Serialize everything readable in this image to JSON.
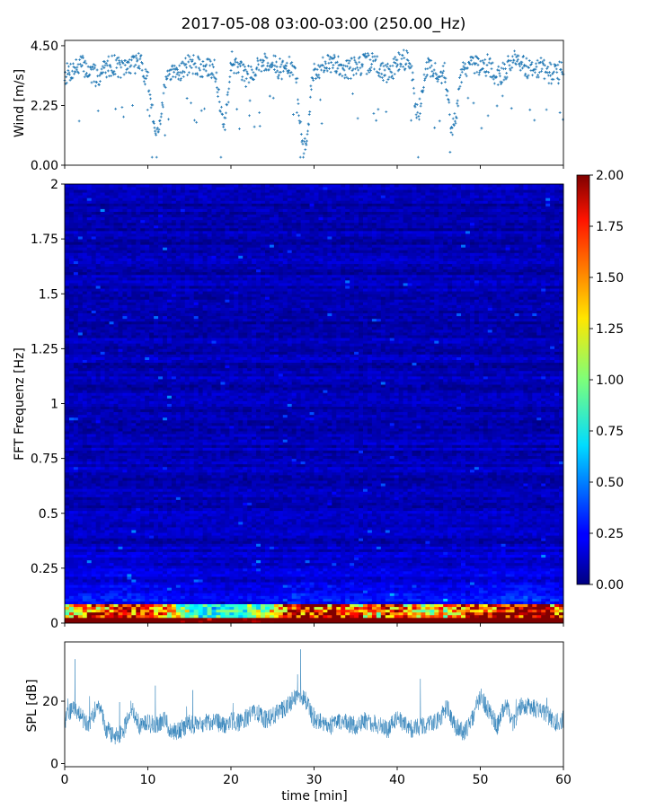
{
  "title": "2017-05-08 03:00-03:00 (250.00_Hz)",
  "colors": {
    "scatter": "#1f77b4",
    "line": "#1f77b4",
    "axes": "#000000",
    "colormap": "jet"
  },
  "chart_data": [
    {
      "type": "scatter",
      "panel": "wind",
      "ylabel": "Wind [m/s]",
      "xlim": [
        0,
        60
      ],
      "ylim": [
        0,
        4.7
      ],
      "yticks": [
        "0.00",
        "2.25",
        "4.50"
      ],
      "ytick_values": [
        0,
        2.25,
        4.5
      ],
      "marker": "+",
      "baseline_profile": {
        "x": [
          0,
          1,
          2,
          3,
          4,
          5,
          6,
          7,
          8,
          9,
          10,
          11,
          12,
          13,
          14,
          15,
          16,
          17,
          18,
          19,
          20,
          21,
          22,
          23,
          24,
          25,
          26,
          27,
          28,
          29,
          30,
          31,
          32,
          33,
          34,
          35,
          36,
          37,
          38,
          39,
          40,
          41,
          42,
          43,
          44,
          45,
          46,
          47,
          48,
          49,
          50,
          51,
          52,
          53,
          54,
          55,
          56,
          57,
          58,
          59,
          60
        ],
        "y": [
          3.4,
          3.6,
          3.8,
          3.5,
          3.3,
          3.7,
          3.8,
          3.6,
          3.8,
          3.9,
          3.2,
          1.8,
          3.0,
          3.4,
          3.6,
          3.8,
          3.7,
          3.6,
          3.7,
          2.4,
          4.0,
          3.6,
          3.3,
          3.7,
          3.9,
          3.8,
          3.6,
          3.7,
          3.3,
          1.2,
          3.6,
          3.7,
          3.8,
          3.8,
          3.6,
          3.7,
          3.8,
          3.9,
          3.6,
          3.4,
          3.9,
          4.0,
          3.8,
          3.6,
          3.7,
          3.4,
          3.5,
          2.2,
          3.7,
          3.8,
          3.6,
          3.8,
          3.3,
          3.6,
          4.0,
          3.8,
          3.6,
          3.7,
          3.5,
          3.4,
          3.6
        ]
      },
      "dips": [
        {
          "x": 11.2,
          "min": 0.9
        },
        {
          "x": 19.2,
          "min": 1.2
        },
        {
          "x": 28.7,
          "min": 0.35
        },
        {
          "x": 42.5,
          "min": 1.2
        },
        {
          "x": 46.6,
          "min": 1.0
        }
      ]
    },
    {
      "type": "heatmap",
      "panel": "spectrogram",
      "ylabel": "FFT Frequenz [Hz]",
      "xlim": [
        0,
        60
      ],
      "ylim": [
        0,
        2
      ],
      "yticks": [
        "0",
        "0.25",
        "0.5",
        "0.75",
        "1",
        "1.25",
        "1.5",
        "1.75",
        "2"
      ],
      "ytick_values": [
        0,
        0.25,
        0.5,
        0.75,
        1,
        1.25,
        1.5,
        1.75,
        2
      ],
      "colorbar": {
        "range": [
          0,
          2
        ],
        "ticks": [
          "0.00",
          "0.25",
          "0.50",
          "0.75",
          "1.00",
          "1.25",
          "1.50",
          "1.75",
          "2.00"
        ],
        "tick_values": [
          0,
          0.25,
          0.5,
          0.75,
          1,
          1.25,
          1.5,
          1.75,
          2
        ]
      },
      "note": "Energy concentrated below 0.25 Hz (values up to 2.0), remainder mostly 0.1-0.4."
    },
    {
      "type": "line",
      "panel": "spl",
      "ylabel": "SPL [dB]",
      "xlabel": "time [min]",
      "xlim": [
        0,
        60
      ],
      "ylim": [
        -1,
        39
      ],
      "yticks": [
        "0",
        "20"
      ],
      "ytick_values": [
        0,
        20
      ],
      "xticks": [
        "0",
        "10",
        "20",
        "30",
        "40",
        "50",
        "60"
      ],
      "xtick_values": [
        0,
        10,
        20,
        30,
        40,
        50,
        60
      ],
      "profile": {
        "x": [
          0,
          1,
          2,
          3,
          4,
          5,
          6,
          7,
          8,
          9,
          10,
          11,
          12,
          13,
          14,
          15,
          16,
          17,
          18,
          19,
          20,
          21,
          22,
          23,
          24,
          25,
          26,
          27,
          28,
          29,
          30,
          31,
          32,
          33,
          34,
          35,
          36,
          37,
          38,
          39,
          40,
          41,
          42,
          43,
          44,
          45,
          46,
          47,
          48,
          49,
          50,
          51,
          52,
          53,
          54,
          55,
          56,
          57,
          58,
          59,
          60
        ],
        "y": [
          14,
          18,
          15,
          12,
          20,
          11,
          9,
          10,
          18,
          12,
          13,
          12,
          14,
          10,
          11,
          13,
          12,
          13,
          14,
          12,
          14,
          13,
          15,
          17,
          14,
          15,
          17,
          19,
          22,
          20,
          14,
          13,
          12,
          14,
          13,
          12,
          14,
          13,
          12,
          11,
          15,
          12,
          11,
          12,
          13,
          14,
          18,
          12,
          10,
          14,
          22,
          17,
          12,
          19,
          13,
          19,
          18,
          17,
          16,
          13,
          14
        ]
      }
    }
  ]
}
